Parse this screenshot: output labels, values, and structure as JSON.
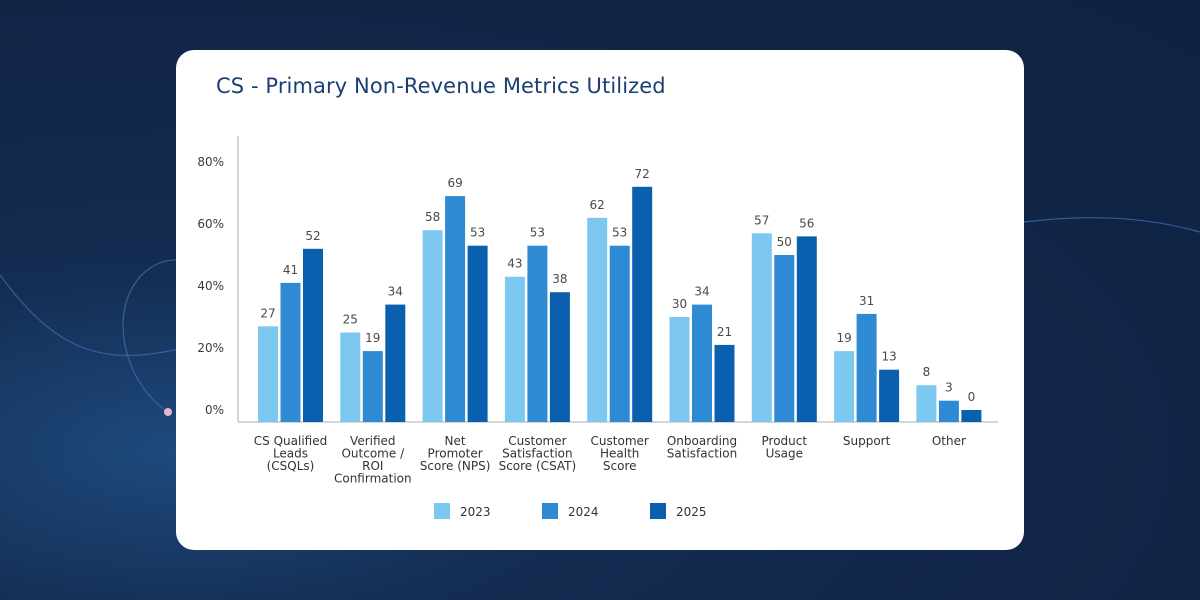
{
  "title": "CS - Primary Non-Revenue Metrics Utilized",
  "colors": {
    "background": "#112648",
    "card": "#ffffff",
    "title": "#1b3f73",
    "series": [
      "#7cc8f0",
      "#2e8ad3",
      "#0a5fae"
    ]
  },
  "chart_data": {
    "type": "bar",
    "title": "CS - Primary Non-Revenue Metrics Utilized",
    "xlabel": "",
    "ylabel": "",
    "ylim": [
      0,
      80
    ],
    "yticks": [
      "0%",
      "20%",
      "40%",
      "60%",
      "80%"
    ],
    "ytick_values": [
      0,
      20,
      40,
      60,
      80
    ],
    "grid": false,
    "legend_position": "bottom",
    "categories": [
      [
        "CS Qualified",
        "Leads",
        "(CSQLs)"
      ],
      [
        "Verified",
        "Outcome /",
        "ROI",
        "Confirmation"
      ],
      [
        "Net",
        "Promoter",
        "Score (NPS)"
      ],
      [
        "Customer",
        "Satisfaction",
        "Score (CSAT)"
      ],
      [
        "Customer",
        "Health",
        "Score"
      ],
      [
        "Onboarding",
        "Satisfaction"
      ],
      [
        "Product",
        "Usage"
      ],
      [
        "Support"
      ],
      [
        "Other"
      ]
    ],
    "series": [
      {
        "name": "2023",
        "values": [
          27,
          25,
          58,
          43,
          62,
          30,
          57,
          19,
          8
        ]
      },
      {
        "name": "2024",
        "values": [
          41,
          19,
          69,
          53,
          53,
          34,
          50,
          31,
          3
        ]
      },
      {
        "name": "2025",
        "values": [
          52,
          34,
          53,
          38,
          72,
          21,
          56,
          13,
          0
        ]
      }
    ]
  }
}
